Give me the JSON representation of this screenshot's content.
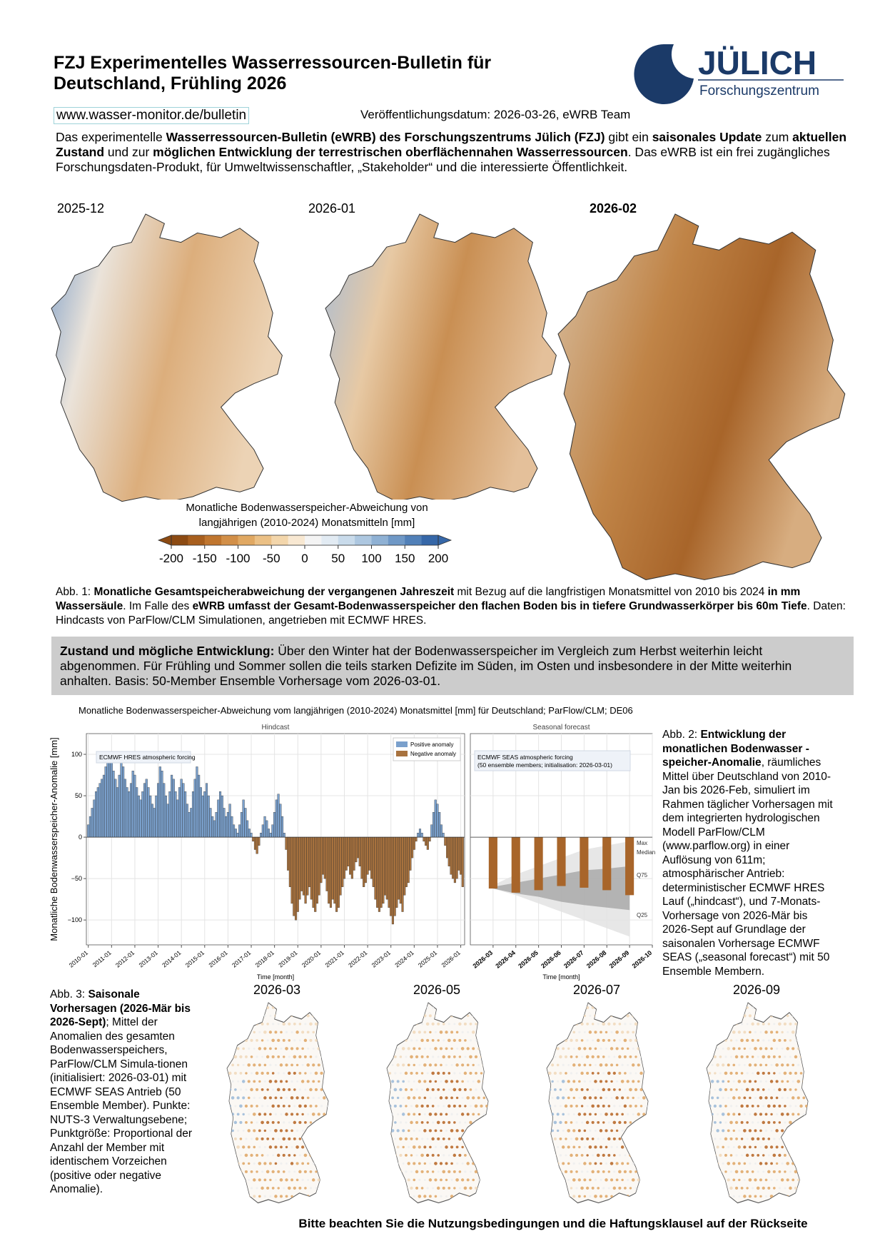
{
  "header": {
    "title_line1": "FZJ Experimentelles Wasserressourcen-Bulletin für",
    "title_line2": "Deutschland, Frühling 2026",
    "logo_name": "JÜLICH",
    "logo_sub": "Forschungszentrum",
    "url": "www.wasser-monitor.de/bulletin",
    "date": "Veröffentlichungsdatum: 2026-03-26, eWRB Team"
  },
  "intro": [
    {
      "text": "Das experimentelle "
    },
    {
      "text": "Wasserressourcen-Bulletin (eWRB) des Forschungszentrums Jülich (FZJ)",
      "bold": true
    },
    {
      "text": " gibt ein "
    },
    {
      "text": "saisonales Update",
      "bold": true
    },
    {
      "text": " zum "
    },
    {
      "text": "aktuellen Zustand",
      "bold": true
    },
    {
      "text": " und zur "
    },
    {
      "text": "möglichen Entwicklung der terrestrischen oberflächennahen Wasserressourcen",
      "bold": true
    },
    {
      "text": ". Das eWRB ist ein frei zugängliches Forschungsdaten-Produkt, für Umweltwissenschaftler, „Stakeholder“ und die interessierte Öffentlichkeit."
    }
  ],
  "figure1": {
    "maps": [
      {
        "label": "2025-12"
      },
      {
        "label": "2026-01"
      },
      {
        "label": "2026-02",
        "bold": true
      }
    ],
    "colorbar": {
      "title_line1": "Monatliche Bodenwasserspeicher-Abweichung von",
      "title_line2": "langjährigen (2010-2024) Monatsmitteln [mm]",
      "lim": [
        -200,
        200
      ],
      "ticks": [
        -200,
        -150,
        -100,
        -50,
        0,
        50,
        100,
        150,
        200
      ],
      "colors": [
        "#8c4a12",
        "#a85f1e",
        "#c0762f",
        "#d28f48",
        "#e0a862",
        "#ebc085",
        "#f3d6ab",
        "#f8e8d2",
        "#f4f4f4",
        "#e2ebf3",
        "#c9dbeb",
        "#adc7e0",
        "#8fb1d4",
        "#6f98c6",
        "#5180b8",
        "#3667a8"
      ]
    },
    "caption": [
      {
        "text": "Abb. 1: "
      },
      {
        "text": "Monatliche Gesamtspeicherabweichung der vergangenen Jahreszeit",
        "bold": true
      },
      {
        "text": " mit Bezug auf die langfristigen Monatsmittel von 2010 bis 2024 "
      },
      {
        "text": "in mm Wassersäule",
        "bold": true
      },
      {
        "text": ". Im Falle des "
      },
      {
        "text": "eWRB umfasst der Gesamt-Bodenwasserspeicher den flachen Boden bis in tiefere Grundwasserkörper bis 60m Tiefe",
        "bold": true
      },
      {
        "text": ". Daten: Hindcasts von ParFlow/CLM Simulationen, angetrieben mit ECMWF HRES."
      }
    ]
  },
  "summary": [
    {
      "text": "Zustand und mögliche Entwicklung:",
      "bold": true
    },
    {
      "text": " Über den Winter hat der Bodenwasserspeicher im Vergleich zum Herbst weiterhin leicht abgenommen. Für Frühling und Sommer sollen die teils starken Defizite im Süden, im Osten und insbesondere in der Mitte weiterhin anhalten. Basis: 50-Member Ensemble Vorhersage vom 2026-03-01."
    }
  ],
  "chart_data": [
    {
      "type": "bar",
      "title": "Monatliche Bodenwasserspeicher-Abweichung vom langjährigen (2010-2024) Monatsmittel [mm] für Deutschland; ParFlow/CLM; DE06",
      "panel_title": "Hindcast",
      "ylabel": "Monatliche Bodenwasserspeicher-Anomalie [mm]",
      "xlabel": "Time [month]",
      "annotation": [
        "ECMWF HRES atmospheric forcing"
      ],
      "legend": [
        {
          "name": "Positive anomaly",
          "color": "#7aa0cc"
        },
        {
          "name": "Negative anomaly",
          "color": "#a8723e"
        }
      ],
      "grid": true,
      "xlim": [
        "2009-12",
        "2026-03"
      ],
      "ylim": [
        -130,
        125
      ],
      "yticks": [
        {
          "value": -100,
          "label": "−100"
        },
        {
          "value": -50,
          "label": "−50"
        },
        0,
        50,
        100
      ],
      "xticks": [
        "2010-01",
        "2011-01",
        "2012-01",
        "2013-01",
        "2014-01",
        "2015-01",
        "2016-01",
        "2017-01",
        "2018-01",
        "2019-01",
        "2020-01",
        "2021-01",
        "2022-01",
        "2023-01",
        "2024-01",
        "2025-01",
        "2026-01"
      ],
      "x": [
        "2010-01",
        "2010-02",
        "2010-03",
        "2010-04",
        "2010-05",
        "2010-06",
        "2010-07",
        "2010-08",
        "2010-09",
        "2010-10",
        "2010-11",
        "2010-12",
        "2011-01",
        "2011-02",
        "2011-03",
        "2011-04",
        "2011-05",
        "2011-06",
        "2011-07",
        "2011-08",
        "2011-09",
        "2011-10",
        "2011-11",
        "2011-12",
        "2012-01",
        "2012-02",
        "2012-03",
        "2012-04",
        "2012-05",
        "2012-06",
        "2012-07",
        "2012-08",
        "2012-09",
        "2012-10",
        "2012-11",
        "2012-12",
        "2013-01",
        "2013-02",
        "2013-03",
        "2013-04",
        "2013-05",
        "2013-06",
        "2013-07",
        "2013-08",
        "2013-09",
        "2013-10",
        "2013-11",
        "2013-12",
        "2014-01",
        "2014-02",
        "2014-03",
        "2014-04",
        "2014-05",
        "2014-06",
        "2014-07",
        "2014-08",
        "2014-09",
        "2014-10",
        "2014-11",
        "2014-12",
        "2015-01",
        "2015-02",
        "2015-03",
        "2015-04",
        "2015-05",
        "2015-06",
        "2015-07",
        "2015-08",
        "2015-09",
        "2015-10",
        "2015-11",
        "2015-12",
        "2016-01",
        "2016-02",
        "2016-03",
        "2016-04",
        "2016-05",
        "2016-06",
        "2016-07",
        "2016-08",
        "2016-09",
        "2016-10",
        "2016-11",
        "2016-12",
        "2017-01",
        "2017-02",
        "2017-03",
        "2017-04",
        "2017-05",
        "2017-06",
        "2017-07",
        "2017-08",
        "2017-09",
        "2017-10",
        "2017-11",
        "2017-12",
        "2018-01",
        "2018-02",
        "2018-03",
        "2018-04",
        "2018-05",
        "2018-06",
        "2018-07",
        "2018-08",
        "2018-09",
        "2018-10",
        "2018-11",
        "2018-12",
        "2019-01",
        "2019-02",
        "2019-03",
        "2019-04",
        "2019-05",
        "2019-06",
        "2019-07",
        "2019-08",
        "2019-09",
        "2019-10",
        "2019-11",
        "2019-12",
        "2020-01",
        "2020-02",
        "2020-03",
        "2020-04",
        "2020-05",
        "2020-06",
        "2020-07",
        "2020-08",
        "2020-09",
        "2020-10",
        "2020-11",
        "2020-12",
        "2021-01",
        "2021-02",
        "2021-03",
        "2021-04",
        "2021-05",
        "2021-06",
        "2021-07",
        "2021-08",
        "2021-09",
        "2021-10",
        "2021-11",
        "2021-12",
        "2022-01",
        "2022-02",
        "2022-03",
        "2022-04",
        "2022-05",
        "2022-06",
        "2022-07",
        "2022-08",
        "2022-09",
        "2022-10",
        "2022-11",
        "2022-12",
        "2023-01",
        "2023-02",
        "2023-03",
        "2023-04",
        "2023-05",
        "2023-06",
        "2023-07",
        "2023-08",
        "2023-09",
        "2023-10",
        "2023-11",
        "2023-12",
        "2024-01",
        "2024-02",
        "2024-03",
        "2024-04",
        "2024-05",
        "2024-06",
        "2024-07",
        "2024-08",
        "2024-09",
        "2024-10",
        "2024-11",
        "2024-12",
        "2025-01",
        "2025-02",
        "2025-03",
        "2025-04",
        "2025-05",
        "2025-06",
        "2025-07",
        "2025-08",
        "2025-09",
        "2025-10",
        "2025-11",
        "2025-12",
        "2026-01",
        "2026-02"
      ],
      "values": [
        15,
        25,
        35,
        45,
        55,
        60,
        65,
        70,
        75,
        85,
        95,
        95,
        92,
        80,
        70,
        60,
        75,
        90,
        85,
        70,
        60,
        55,
        65,
        80,
        75,
        60,
        50,
        45,
        55,
        65,
        70,
        60,
        50,
        40,
        35,
        50,
        65,
        85,
        80,
        65,
        50,
        40,
        55,
        75,
        70,
        55,
        45,
        60,
        70,
        65,
        55,
        40,
        30,
        35,
        55,
        70,
        85,
        75,
        60,
        50,
        55,
        65,
        50,
        35,
        25,
        20,
        30,
        45,
        55,
        50,
        35,
        25,
        30,
        40,
        25,
        15,
        10,
        5,
        15,
        30,
        45,
        35,
        20,
        10,
        5,
        -5,
        -15,
        -20,
        -10,
        5,
        15,
        25,
        20,
        10,
        5,
        15,
        30,
        45,
        52,
        40,
        25,
        5,
        -15,
        -40,
        -60,
        -80,
        -95,
        -100,
        -90,
        -75,
        -65,
        -70,
        -80,
        -70,
        -60,
        -75,
        -85,
        -90,
        -80,
        -70,
        -55,
        -45,
        -50,
        -65,
        -80,
        -85,
        -75,
        -80,
        -90,
        -85,
        -70,
        -60,
        -50,
        -40,
        -35,
        -45,
        -50,
        -40,
        -30,
        -25,
        -35,
        -50,
        -60,
        -55,
        -45,
        -40,
        -50,
        -60,
        -75,
        -85,
        -90,
        -85,
        -80,
        -70,
        -75,
        -85,
        -95,
        -105,
        -95,
        -85,
        -75,
        -80,
        -90,
        -70,
        -60,
        -55,
        -40,
        -25,
        -15,
        -5,
        5,
        10,
        5,
        -5,
        -10,
        -15,
        -5,
        15,
        30,
        45,
        40,
        30,
        15,
        5,
        -10,
        -25,
        -35,
        -45,
        -50,
        -55,
        -50,
        -40,
        -45,
        -60
      ]
    },
    {
      "type": "forecast",
      "panel_title": "Seasonal forecast",
      "xlabel": "Time [month]",
      "annotation": [
        "ECMWF SEAS atmospheric forcing",
        "(50 ensemble members; initialisation: 2026-03-01)"
      ],
      "grid": true,
      "xlim": [
        "2026-02",
        "2026-10"
      ],
      "ylim": [
        -130,
        125
      ],
      "yticks": [
        -100,
        -50,
        0,
        50,
        100
      ],
      "xticks": [
        "2026-03",
        "2026-04",
        "2026-05",
        "2026-06",
        "2026-07",
        "2026-08",
        "2026-09",
        "2026-10"
      ],
      "x": [
        "2026-03",
        "2026-04",
        "2026-05",
        "2026-06",
        "2026-07",
        "2026-08",
        "2026-09"
      ],
      "values": [
        -62,
        -67,
        -64,
        -59,
        -61,
        -64,
        -70
      ],
      "color": "#a8652a",
      "bands": [
        {
          "lower": [
            -62,
            -70,
            -80,
            -90,
            -100,
            -110,
            -120
          ],
          "upper": [
            -58,
            -45,
            -35,
            -25,
            -15,
            -10,
            -5
          ],
          "color": "#e3e3e3"
        },
        {
          "lower": [
            -62,
            -68,
            -72,
            -78,
            -82,
            -85,
            -88
          ],
          "upper": [
            -60,
            -55,
            -50,
            -45,
            -40,
            -38,
            -35
          ],
          "color": "#a9a9a9"
        }
      ],
      "band_labels": [
        "Max",
        "Median",
        "Q75",
        "Q25"
      ]
    }
  ],
  "figure2_caption": [
    {
      "text": "Abb. 2: "
    },
    {
      "text": "Entwicklung der monatlichen Bodenwasser -speicher-Anomalie",
      "bold": true
    },
    {
      "text": ", räumliches Mittel über Deutschland von 2010-Jan bis 2026-Feb, simuliert im Rahmen täglicher Vorhersagen mit dem integrierten hydrologischen Modell ParFlow/CLM (www.parflow.org) in einer Auflösung von 611m; atmosphärischer Antrieb: deterministischer ECMWF HRES Lauf („hindcast“), und 7-Monats-Vorhersage von 2026-Mär bis 2026-Sept auf Grundlage der saisonalen Vorhersage ECMWF SEAS („seasonal forecast“) mit 50 Ensemble Membern."
    }
  ],
  "figure3": {
    "maps": [
      {
        "label": "2026-03"
      },
      {
        "label": "2026-05"
      },
      {
        "label": "2026-07"
      },
      {
        "label": "2026-09"
      }
    ],
    "caption": [
      {
        "text": "Abb. 3: "
      },
      {
        "text": "Saisonale Vorhersagen (2026-Mär bis 2026-Sept)",
        "bold": true
      },
      {
        "text": "; Mittel der Anomalien des gesamten Bodenwasserspeichers, ParFlow/CLM Simula-tionen (initialisiert: 2026-03-01) mit ECMWF SEAS Antrieb (50 Ensemble Member). Punkte: NUTS-3 Verwaltungsebene; Punktgröße: Proportional der Anzahl der Member mit identischem Vorzeichen (positive oder negative Anomalie)."
      }
    ]
  },
  "footer": "Bitte beachten Sie die Nutzungsbedingungen und die Haftungsklausel auf der Rückseite"
}
